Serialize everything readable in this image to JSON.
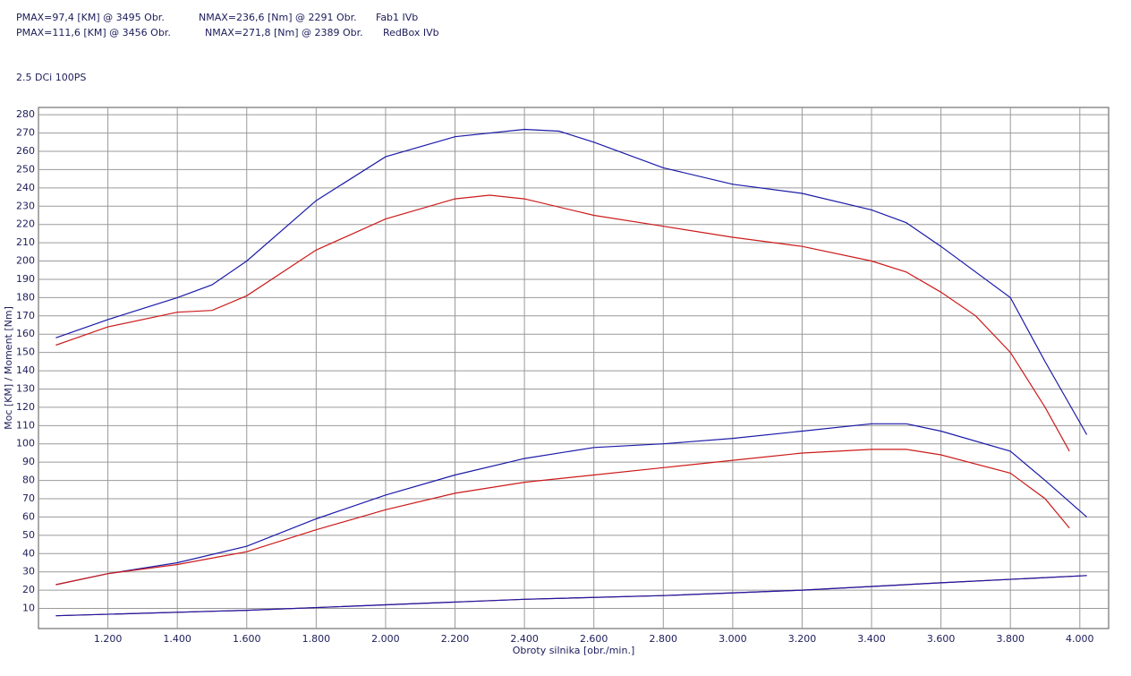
{
  "chart_data": {
    "type": "line",
    "header": [
      {
        "pmax": "PMAX=97,4 [KM] @ 3495 Obr.",
        "nmax": "NMAX=236,6 [Nm] @ 2291 Obr.",
        "name": "Fab1 IVb"
      },
      {
        "pmax": "PMAX=111,6 [KM] @ 3456 Obr.",
        "nmax": "NMAX=271,8 [Nm] @ 2389 Obr.",
        "name": "RedBox IVb"
      }
    ],
    "subtitle": "2.5 DCi 100PS",
    "ylabel": "Moc [KM] / Moment [Nm]",
    "xlabel": "Obroty silnika [obr./min.]",
    "xlim": [
      1000,
      4083
    ],
    "ylim": [
      -1,
      284
    ],
    "grid": true,
    "xticks": [
      {
        "value": 1200,
        "label": "1.200"
      },
      {
        "value": 1400,
        "label": "1.400"
      },
      {
        "value": 1600,
        "label": "1.600"
      },
      {
        "value": 1800,
        "label": "1.800"
      },
      {
        "value": 2000,
        "label": "2.000"
      },
      {
        "value": 2200,
        "label": "2.200"
      },
      {
        "value": 2400,
        "label": "2.400"
      },
      {
        "value": 2600,
        "label": "2.600"
      },
      {
        "value": 2800,
        "label": "2.800"
      },
      {
        "value": 3000,
        "label": "3.000"
      },
      {
        "value": 3200,
        "label": "3.200"
      },
      {
        "value": 3400,
        "label": "3.400"
      },
      {
        "value": 3600,
        "label": "3.600"
      },
      {
        "value": 3800,
        "label": "3.800"
      },
      {
        "value": 4000,
        "label": "4.000"
      }
    ],
    "yticks": [
      10,
      20,
      30,
      40,
      50,
      60,
      70,
      80,
      90,
      100,
      110,
      120,
      130,
      140,
      150,
      160,
      170,
      180,
      190,
      200,
      210,
      220,
      230,
      240,
      250,
      260,
      270,
      280
    ],
    "series": [
      {
        "color": "#1a1aa8",
        "x": [
          1050,
          1200,
          1400,
          1500,
          1600,
          1800,
          2000,
          2200,
          2400,
          2500,
          2600,
          2800,
          3000,
          3200,
          3400,
          3500,
          3600,
          3800,
          3900,
          4020
        ],
        "values": [
          158,
          168,
          180,
          187,
          200,
          233,
          257,
          268,
          272,
          271,
          265,
          251,
          242,
          237,
          228,
          221,
          208,
          180,
          145,
          105
        ]
      },
      {
        "color": "#cc1a1a",
        "x": [
          1050,
          1200,
          1400,
          1500,
          1600,
          1800,
          2000,
          2200,
          2300,
          2400,
          2600,
          2800,
          3000,
          3200,
          3400,
          3500,
          3600,
          3700,
          3800,
          3900,
          3970
        ],
        "values": [
          154,
          164,
          172,
          173,
          181,
          206,
          223,
          234,
          236,
          234,
          225,
          219,
          213,
          208,
          200,
          194,
          183,
          170,
          150,
          120,
          96
        ]
      },
      {
        "color": "#1a1aa8",
        "x": [
          1050,
          1200,
          1400,
          1600,
          1800,
          2000,
          2200,
          2400,
          2600,
          2800,
          3000,
          3200,
          3400,
          3500,
          3600,
          3800,
          3900,
          4020
        ],
        "values": [
          23,
          29,
          35,
          44,
          59,
          72,
          83,
          92,
          98,
          100,
          103,
          107,
          111,
          111,
          107,
          96,
          80,
          60
        ]
      },
      {
        "color": "#cc1a1a",
        "x": [
          1050,
          1200,
          1400,
          1600,
          1800,
          2000,
          2200,
          2400,
          2600,
          2800,
          3000,
          3200,
          3400,
          3500,
          3600,
          3800,
          3900,
          3970
        ],
        "values": [
          23,
          29,
          34,
          41,
          53,
          64,
          73,
          79,
          83,
          87,
          91,
          95,
          97,
          97,
          94,
          84,
          70,
          54
        ]
      },
      {
        "color": "#cc1a1a",
        "x": [
          1050,
          1600,
          2000,
          2400,
          2800,
          3200,
          3600,
          4020
        ],
        "values": [
          6,
          9,
          12,
          15,
          17,
          20,
          24,
          28
        ]
      },
      {
        "color": "#1a1aa8",
        "x": [
          1050,
          1600,
          2000,
          2400,
          2800,
          3200,
          3600,
          4020
        ],
        "values": [
          6,
          9,
          12,
          15,
          17,
          20,
          24,
          28
        ]
      }
    ]
  }
}
